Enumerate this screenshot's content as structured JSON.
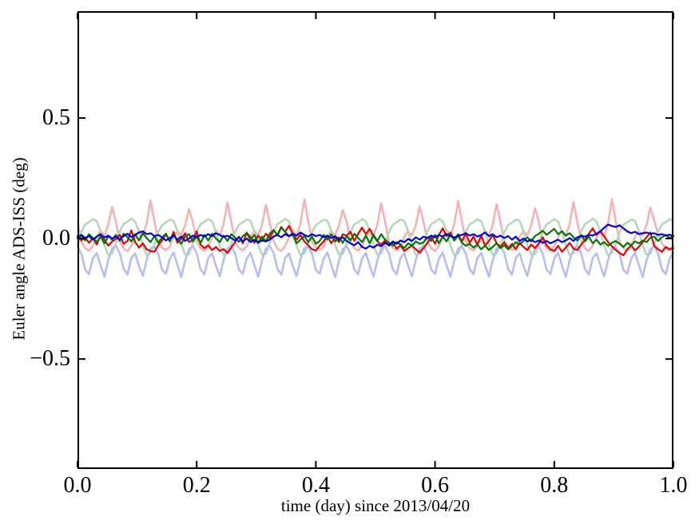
{
  "figure": {
    "title": "",
    "xtick_labels": [
      "0.0",
      "0.2",
      "0.4",
      "0.6",
      "0.8",
      "1.0"
    ],
    "ytick_labels": [
      "0.5",
      "0.0",
      "−0.5"
    ],
    "background_color": "#ffffff",
    "axis_color": "#000000"
  },
  "chart_data": {
    "type": "line",
    "title": "",
    "xlabel": "time (day) since 2013/04/20",
    "ylabel": "Euler angle ADS-ISS (deg)",
    "xlim": [
      0.0,
      1.0
    ],
    "ylim": [
      -0.956,
      0.943
    ],
    "xticks": [
      0.0,
      0.2,
      0.4,
      0.6,
      0.8,
      1.0
    ],
    "yticks": [
      0.5,
      0.0,
      -0.5
    ],
    "grid": false,
    "legend": null,
    "tick_direction": "in",
    "x_start": 0.0,
    "x_step": 0.0064516,
    "series": [
      {
        "name": "light-red-periodic",
        "color": "#f6b2b2",
        "linewidth": 2.6,
        "values": [
          0.07,
          -0.012,
          -0.04,
          -0.05,
          -0.032,
          0.006,
          0.034,
          0.012,
          0.058,
          0.13,
          0.068,
          -0.01,
          -0.042,
          -0.052,
          -0.03,
          0.004,
          0.036,
          0.01,
          0.062,
          0.158,
          0.072,
          -0.014,
          -0.038,
          -0.048,
          -0.034,
          0.008,
          0.03,
          0.014,
          0.055,
          0.122,
          0.069,
          -0.011,
          -0.041,
          -0.051,
          -0.031,
          0.005,
          0.035,
          0.011,
          0.06,
          0.15,
          0.071,
          -0.013,
          -0.039,
          -0.049,
          -0.033,
          0.007,
          0.032,
          0.013,
          0.057,
          0.139,
          0.068,
          -0.01,
          -0.042,
          -0.052,
          -0.03,
          0.004,
          0.036,
          0.01,
          0.063,
          0.162,
          0.073,
          -0.015,
          -0.037,
          -0.047,
          -0.035,
          0.009,
          0.029,
          0.015,
          0.054,
          0.118,
          0.07,
          -0.012,
          -0.04,
          -0.05,
          -0.032,
          0.006,
          0.033,
          0.012,
          0.059,
          0.147,
          0.071,
          -0.013,
          -0.039,
          -0.049,
          -0.033,
          0.007,
          0.031,
          0.013,
          0.056,
          0.133,
          0.069,
          -0.011,
          -0.041,
          -0.051,
          -0.031,
          0.005,
          0.035,
          0.011,
          0.061,
          0.156,
          0.07,
          -0.012,
          -0.04,
          -0.05,
          -0.032,
          0.006,
          0.033,
          0.012,
          0.058,
          0.142,
          0.072,
          -0.014,
          -0.038,
          -0.048,
          -0.034,
          0.008,
          0.03,
          0.014,
          0.055,
          0.125,
          0.069,
          -0.011,
          -0.041,
          -0.051,
          -0.031,
          0.005,
          0.034,
          0.011,
          0.06,
          0.151,
          0.068,
          -0.01,
          -0.042,
          -0.052,
          -0.03,
          0.004,
          0.036,
          0.01,
          0.063,
          0.163,
          0.071,
          -0.013,
          -0.039,
          -0.049,
          -0.033,
          0.007,
          0.031,
          0.013,
          0.056,
          0.128,
          0.075,
          0.02,
          -0.02,
          -0.04,
          -0.05,
          -0.03
        ]
      },
      {
        "name": "light-green-periodic",
        "color": "#b4d8b4",
        "linewidth": 2.6,
        "values": [
          -0.022,
          0.028,
          0.058,
          0.068,
          0.08,
          0.072,
          0.03,
          -0.028,
          -0.068,
          -0.062,
          -0.02,
          0.03,
          0.06,
          0.07,
          0.082,
          0.07,
          0.028,
          -0.03,
          -0.07,
          -0.06,
          -0.024,
          0.026,
          0.056,
          0.066,
          0.078,
          0.074,
          0.032,
          -0.026,
          -0.066,
          -0.064,
          -0.021,
          0.029,
          0.059,
          0.069,
          0.081,
          0.071,
          0.029,
          -0.029,
          -0.069,
          -0.061,
          -0.023,
          0.027,
          0.057,
          0.067,
          0.079,
          0.073,
          0.031,
          -0.027,
          -0.067,
          -0.063,
          -0.02,
          0.03,
          0.06,
          0.07,
          0.082,
          0.07,
          0.028,
          -0.03,
          -0.07,
          -0.06,
          -0.024,
          0.026,
          0.056,
          0.066,
          0.078,
          0.074,
          0.032,
          -0.026,
          -0.066,
          -0.064,
          -0.022,
          0.028,
          0.058,
          0.068,
          0.08,
          0.072,
          0.03,
          -0.028,
          -0.068,
          -0.062,
          -0.023,
          0.027,
          0.057,
          0.067,
          0.079,
          0.073,
          0.031,
          -0.027,
          -0.067,
          -0.063,
          -0.021,
          0.029,
          0.059,
          0.069,
          0.081,
          0.071,
          0.029,
          -0.029,
          -0.069,
          -0.061,
          -0.022,
          0.028,
          0.058,
          0.068,
          0.08,
          0.072,
          0.03,
          -0.028,
          -0.068,
          -0.062,
          -0.024,
          0.026,
          0.056,
          0.066,
          0.078,
          0.074,
          0.032,
          -0.026,
          -0.066,
          -0.064,
          -0.021,
          0.029,
          0.059,
          0.069,
          0.081,
          0.071,
          0.029,
          -0.029,
          -0.069,
          -0.061,
          -0.02,
          0.03,
          0.06,
          0.07,
          0.082,
          0.07,
          0.028,
          -0.03,
          -0.07,
          -0.06,
          -0.023,
          0.027,
          0.057,
          0.067,
          0.079,
          0.073,
          0.031,
          -0.027,
          -0.067,
          -0.063,
          -0.022,
          0.028,
          0.058,
          0.068,
          0.08,
          0.072
        ]
      },
      {
        "name": "light-blue-periodic",
        "color": "#b6bdf2",
        "linewidth": 2.6,
        "values": [
          -0.032,
          -0.062,
          -0.128,
          -0.148,
          -0.082,
          -0.06,
          -0.112,
          -0.158,
          -0.09,
          -0.042,
          -0.03,
          -0.06,
          -0.125,
          -0.15,
          -0.08,
          -0.062,
          -0.115,
          -0.155,
          -0.088,
          -0.04,
          -0.034,
          -0.064,
          -0.13,
          -0.146,
          -0.084,
          -0.058,
          -0.11,
          -0.16,
          -0.092,
          -0.044,
          -0.031,
          -0.061,
          -0.127,
          -0.149,
          -0.081,
          -0.061,
          -0.113,
          -0.157,
          -0.089,
          -0.041,
          -0.033,
          -0.063,
          -0.129,
          -0.147,
          -0.083,
          -0.059,
          -0.111,
          -0.159,
          -0.091,
          -0.043,
          -0.03,
          -0.06,
          -0.126,
          -0.15,
          -0.08,
          -0.062,
          -0.114,
          -0.156,
          -0.088,
          -0.04,
          -0.034,
          -0.064,
          -0.13,
          -0.146,
          -0.084,
          -0.058,
          -0.11,
          -0.16,
          -0.092,
          -0.044,
          -0.032,
          -0.062,
          -0.128,
          -0.148,
          -0.082,
          -0.06,
          -0.112,
          -0.158,
          -0.09,
          -0.042,
          -0.031,
          -0.061,
          -0.127,
          -0.149,
          -0.081,
          -0.061,
          -0.113,
          -0.157,
          -0.089,
          -0.041,
          -0.033,
          -0.063,
          -0.129,
          -0.147,
          -0.083,
          -0.059,
          -0.111,
          -0.159,
          -0.091,
          -0.043,
          -0.032,
          -0.062,
          -0.128,
          -0.148,
          -0.082,
          -0.06,
          -0.112,
          -0.158,
          -0.09,
          -0.042,
          -0.03,
          -0.06,
          -0.126,
          -0.15,
          -0.08,
          -0.062,
          -0.114,
          -0.156,
          -0.088,
          -0.04,
          -0.033,
          -0.063,
          -0.129,
          -0.147,
          -0.083,
          -0.059,
          -0.111,
          -0.159,
          -0.091,
          -0.043,
          -0.031,
          -0.061,
          -0.127,
          -0.149,
          -0.081,
          -0.061,
          -0.113,
          -0.157,
          -0.089,
          -0.041,
          -0.034,
          -0.064,
          -0.13,
          -0.146,
          -0.084,
          -0.058,
          -0.11,
          -0.16,
          -0.092,
          -0.044,
          -0.032,
          -0.062,
          -0.128,
          -0.148,
          -0.082,
          -0.06
        ]
      },
      {
        "name": "red-noisy",
        "color": "#e60000",
        "linewidth": 2.2,
        "values": [
          0.01,
          -0.008,
          0.004,
          -0.018,
          0.002,
          -0.025,
          0.012,
          -0.005,
          -0.03,
          -0.012,
          -0.002,
          0.015,
          -0.022,
          -0.01,
          0.034,
          -0.015,
          -0.038,
          -0.02,
          -0.045,
          -0.052,
          -0.055,
          -0.028,
          -0.008,
          0.018,
          -0.012,
          0.028,
          -0.018,
          -0.002,
          0.022,
          -0.015,
          -0.005,
          0.03,
          -0.025,
          -0.04,
          -0.028,
          -0.048,
          -0.035,
          -0.052,
          -0.044,
          -0.06,
          -0.038,
          -0.015,
          0.008,
          -0.02,
          0.025,
          0.005,
          -0.018,
          0.012,
          -0.008,
          0.02,
          0.002,
          0.035,
          0.015,
          0.048,
          0.028,
          0.052,
          0.02,
          -0.005,
          0.015,
          -0.012,
          -0.028,
          -0.045,
          -0.05,
          -0.03,
          -0.012,
          0.01,
          -0.02,
          0.005,
          -0.015,
          0.018,
          0.012,
          0.028,
          -0.01,
          0.02,
          0.045,
          0.018,
          0.04,
          0.01,
          -0.012,
          -0.025,
          -0.008,
          -0.03,
          -0.018,
          -0.042,
          -0.028,
          -0.052,
          -0.04,
          -0.03,
          -0.045,
          -0.058,
          -0.04,
          -0.018,
          0.005,
          -0.022,
          0.015,
          0.042,
          0.01,
          0.025,
          -0.008,
          0.018,
          -0.012,
          0.022,
          -0.018,
          0.008,
          -0.025,
          0.012,
          -0.03,
          -0.01,
          0.015,
          -0.02,
          -0.035,
          -0.015,
          -0.04,
          -0.022,
          -0.045,
          -0.018,
          -0.035,
          -0.048,
          -0.025,
          -0.04,
          -0.02,
          0.005,
          -0.028,
          -0.045,
          -0.052,
          -0.03,
          -0.055,
          -0.038,
          -0.018,
          -0.042,
          -0.048,
          -0.025,
          -0.005,
          0.02,
          0.042,
          0.015,
          0.03,
          0.008,
          -0.015,
          -0.032,
          -0.048,
          -0.06,
          -0.07,
          -0.045,
          -0.028,
          -0.05,
          -0.035,
          -0.015,
          0.005,
          0.025,
          -0.03,
          -0.045,
          -0.055,
          -0.035,
          -0.045,
          -0.04
        ]
      },
      {
        "name": "green-noisy",
        "color": "#007700",
        "linewidth": 2.2,
        "values": [
          0.0,
          0.012,
          -0.008,
          0.018,
          0.002,
          -0.015,
          0.008,
          -0.02,
          0.01,
          -0.005,
          0.015,
          -0.01,
          0.02,
          0.005,
          -0.012,
          0.018,
          -0.008,
          0.022,
          0.002,
          -0.015,
          0.01,
          -0.018,
          0.005,
          0.02,
          -0.01,
          0.015,
          -0.005,
          -0.022,
          0.008,
          0.018,
          -0.012,
          0.01,
          -0.02,
          0.015,
          -0.008,
          0.02,
          0.0,
          -0.015,
          0.012,
          -0.01,
          0.018,
          0.004,
          -0.014,
          0.01,
          0.022,
          -0.006,
          0.015,
          -0.018,
          0.008,
          -0.012,
          0.02,
          0.035,
          0.012,
          0.045,
          0.028,
          0.01,
          0.015,
          -0.02,
          -0.005,
          0.01,
          -0.015,
          0.008,
          -0.022,
          -0.01,
          0.015,
          -0.005,
          0.018,
          -0.012,
          0.005,
          -0.018,
          0.01,
          -0.008,
          0.02,
          0.002,
          -0.015,
          0.012,
          -0.02,
          0.015,
          -0.01,
          0.018,
          -0.005,
          -0.018,
          -0.03,
          -0.015,
          -0.025,
          -0.04,
          -0.02,
          -0.03,
          -0.012,
          -0.022,
          -0.015,
          0.005,
          -0.01,
          0.015,
          -0.02,
          0.008,
          -0.012,
          0.018,
          -0.008,
          0.012,
          -0.018,
          -0.03,
          -0.022,
          -0.038,
          -0.025,
          -0.045,
          -0.03,
          -0.048,
          -0.035,
          -0.02,
          -0.04,
          -0.028,
          -0.045,
          -0.032,
          -0.015,
          -0.025,
          -0.01,
          0.005,
          -0.012,
          0.01,
          0.02,
          0.032,
          0.015,
          0.028,
          0.04,
          0.018,
          0.03,
          0.012,
          0.022,
          0.005,
          -0.008,
          0.015,
          -0.012,
          0.008,
          -0.02,
          -0.005,
          -0.025,
          -0.015,
          -0.03,
          -0.018,
          -0.01,
          -0.022,
          -0.035,
          -0.018,
          -0.028,
          -0.012,
          -0.02,
          -0.008,
          -0.015,
          0.002,
          0.008,
          -0.01,
          0.005,
          0.015,
          0.002,
          0.01
        ]
      },
      {
        "name": "blue-noisy",
        "color": "#0000dd",
        "linewidth": 2.2,
        "values": [
          0.005,
          0.015,
          0.002,
          0.01,
          -0.005,
          0.008,
          0.018,
          0.004,
          0.012,
          0.0,
          0.008,
          -0.004,
          0.01,
          0.02,
          0.006,
          0.015,
          0.025,
          0.03,
          0.018,
          0.022,
          0.01,
          0.015,
          0.005,
          -0.008,
          0.002,
          0.012,
          -0.005,
          0.008,
          -0.01,
          0.0,
          0.012,
          0.005,
          0.015,
          0.008,
          0.018,
          0.01,
          0.022,
          0.015,
          0.006,
          0.012,
          0.002,
          -0.008,
          0.005,
          -0.012,
          0.0,
          -0.015,
          -0.005,
          -0.018,
          -0.008,
          -0.012,
          -0.005,
          0.008,
          0.015,
          0.005,
          0.018,
          0.01,
          0.02,
          0.012,
          0.025,
          0.015,
          0.008,
          0.018,
          0.01,
          0.015,
          0.005,
          0.012,
          0.002,
          0.01,
          -0.005,
          0.005,
          -0.01,
          -0.02,
          -0.028,
          -0.015,
          -0.035,
          -0.042,
          -0.03,
          -0.038,
          -0.025,
          -0.032,
          -0.018,
          -0.028,
          -0.012,
          -0.022,
          -0.008,
          -0.015,
          -0.002,
          -0.01,
          0.005,
          -0.005,
          0.008,
          0.002,
          0.012,
          0.005,
          0.015,
          0.008,
          0.018,
          0.01,
          0.004,
          0.012,
          0.015,
          0.022,
          0.012,
          0.018,
          0.008,
          0.015,
          0.025,
          0.01,
          0.018,
          0.005,
          0.012,
          0.002,
          0.01,
          -0.005,
          0.008,
          -0.01,
          0.0,
          -0.012,
          -0.005,
          -0.015,
          -0.008,
          -0.018,
          -0.01,
          -0.02,
          -0.012,
          -0.005,
          -0.015,
          -0.008,
          0.002,
          -0.01,
          0.005,
          0.01,
          0.008,
          0.015,
          0.012,
          0.02,
          0.03,
          0.045,
          0.058,
          0.052,
          0.048,
          0.055,
          0.042,
          0.03,
          0.022,
          0.028,
          0.018,
          0.022,
          0.025,
          0.02,
          0.022,
          0.015,
          0.018,
          0.012,
          0.016,
          0.01
        ]
      }
    ]
  }
}
